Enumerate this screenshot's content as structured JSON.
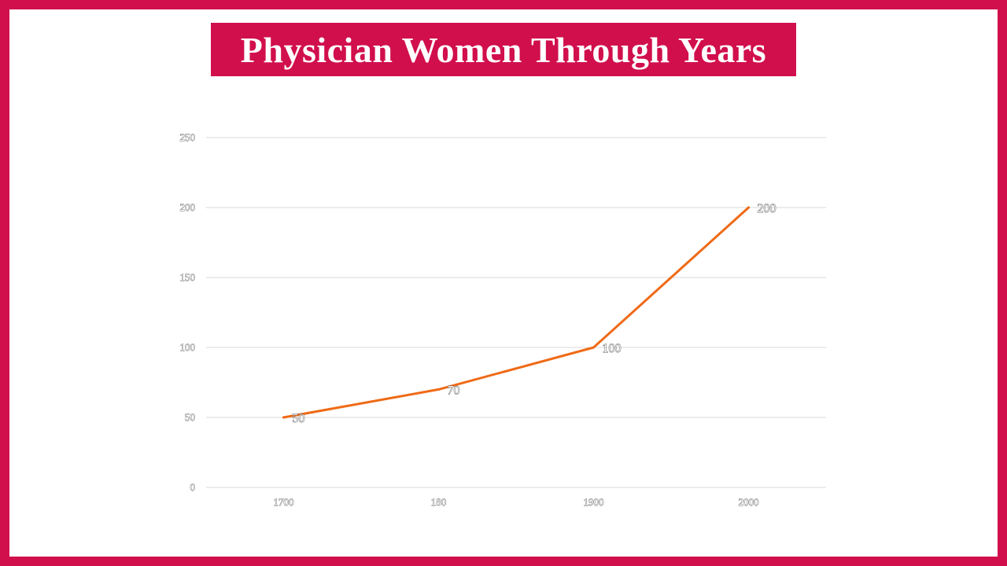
{
  "slide": {
    "border_color": "#d10f4d",
    "title": "Physician Women Through Years"
  },
  "chart_data": {
    "type": "line",
    "title": "",
    "xlabel": "",
    "ylabel": "",
    "categories": [
      "1700",
      "180",
      "1900",
      "2000"
    ],
    "series": [
      {
        "values": [
          50,
          70,
          100,
          200
        ],
        "color": "#ef6a16"
      }
    ],
    "data_labels": [
      "50",
      "70",
      "100",
      "200"
    ],
    "y_ticks": [
      "0",
      "50",
      "100",
      "150",
      "200",
      "250"
    ],
    "ylim": [
      0,
      250
    ],
    "grid": true,
    "legend": "none"
  }
}
